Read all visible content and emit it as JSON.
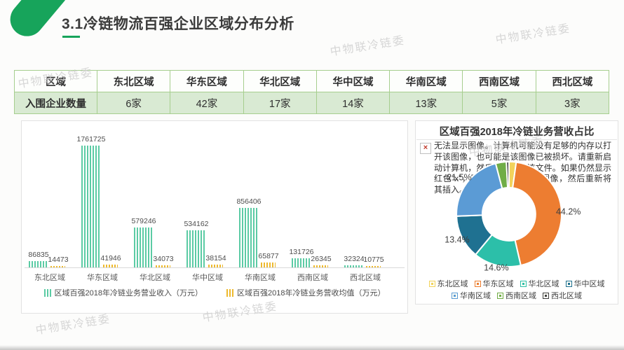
{
  "slide": {
    "title": "3.1冷链物流百强企业区域分布分析",
    "watermark_text": "中物联冷链委"
  },
  "table": {
    "header_row": [
      "区域",
      "东北区域",
      "华东区域",
      "华北区域",
      "华中区域",
      "华南区域",
      "西南区域",
      "西北区域"
    ],
    "value_row": [
      "入围企业数量",
      "6家",
      "42家",
      "17家",
      "14家",
      "13家",
      "5家",
      "3家"
    ]
  },
  "error_overlay": {
    "icon": "x",
    "message": "无法显示图像。计算机可能没有足够的内存以打开该图像，也可能是该图像已被损坏。请重新启动计算机，然后重新打开该文件。如果仍然显示红色“x”，则可能需要删除该图像，然后重新将其插入。"
  },
  "chart_data": [
    {
      "type": "bar",
      "categories": [
        "东北区域",
        "华东区域",
        "华北区域",
        "华中区域",
        "华南区域",
        "西南区域",
        "西北区域"
      ],
      "series": [
        {
          "name": "区域百强2018年冷链业务营业收入（万元）",
          "color": "#5BCBA4",
          "pattern": "vertical-stripes",
          "values": [
            86835,
            1761725,
            579246,
            534162,
            856406,
            131726,
            32324
          ]
        },
        {
          "name": "区域百强2018年冷链业务营收均值（万元）",
          "color": "#EDB92E",
          "pattern": "dots",
          "values": [
            14473,
            41946,
            34073,
            38154,
            65877,
            26345,
            10775
          ]
        }
      ],
      "value_labels": true,
      "ylim": [
        0,
        1900000
      ],
      "grid": false,
      "legend_position": "bottom"
    },
    {
      "type": "pie",
      "subtype": "donut",
      "title": "区域百强2018年冷链业务营收占比",
      "segments": [
        {
          "name": "东北区域",
          "pct": 2.2,
          "color": "#F2D35C",
          "label": ""
        },
        {
          "name": "华东区域",
          "pct": 44.2,
          "color": "#ED7D31",
          "label": "44.2%"
        },
        {
          "name": "华北区域",
          "pct": 14.6,
          "color": "#2CBFA9",
          "label": "14.6%"
        },
        {
          "name": "华中区域",
          "pct": 13.4,
          "color": "#1F7191",
          "label": "13.4%"
        },
        {
          "name": "华南区域",
          "pct": 21.5,
          "color": "#5B9BD5",
          "label": "21.5%"
        },
        {
          "name": "西南区域",
          "pct": 3.3,
          "color": "#70AD47",
          "label": ""
        },
        {
          "name": "西北区域",
          "pct": 0.8,
          "color": "#404040",
          "label": ""
        }
      ],
      "legend_rows": [
        [
          "东北区域",
          "华东区域",
          "华北区域",
          "华中区域"
        ],
        [
          "华南区域",
          "西南区域",
          "西北区域"
        ]
      ],
      "legend_position": "bottom"
    }
  ]
}
